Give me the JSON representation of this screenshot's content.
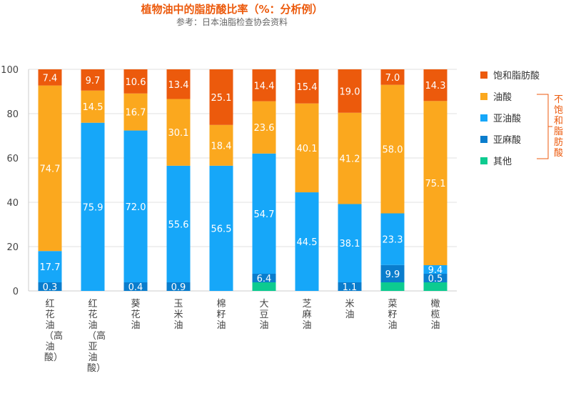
{
  "chart_data": {
    "type": "bar",
    "stacked": true,
    "title": "植物油中的脂肪酸比率（%：分析例）",
    "subtitle": "参考：日本油脂检查协会资料",
    "ylim": [
      0,
      100
    ],
    "yticks": [
      "0",
      "20",
      "40",
      "60",
      "80",
      "100"
    ],
    "grid": true,
    "legend_placement": "right",
    "categories": [
      "红花油（高油酸）",
      "红花油（高亚油酸）",
      "葵花油",
      "玉米油",
      "棉籽油",
      "大豆油",
      "芝麻油",
      "米油",
      "菜籽油",
      "橄榄油"
    ],
    "series": [
      {
        "name": "饱和脂肪酸",
        "color": "#ec5a0c",
        "values": [
          7.4,
          9.7,
          10.6,
          13.4,
          25.1,
          14.4,
          15.4,
          19.0,
          7.0,
          14.3
        ],
        "labels": [
          "7.4",
          "9.7",
          "10.6",
          "13.4",
          "25.1",
          "14.4",
          "15.4",
          "19.0",
          "7.0",
          "14.3"
        ]
      },
      {
        "name": "油酸",
        "color": "#fba81e",
        "values": [
          74.7,
          14.5,
          16.7,
          30.1,
          18.4,
          23.6,
          40.1,
          41.2,
          58.0,
          75.1
        ],
        "labels": [
          "74.7",
          "14.5",
          "16.7",
          "30.1",
          "18.4",
          "23.6",
          "40.1",
          "41.2",
          "58.0",
          "75.1"
        ]
      },
      {
        "name": "亚油酸",
        "color": "#16a7f9",
        "values": [
          17.7,
          75.9,
          72.0,
          55.6,
          56.5,
          54.7,
          44.5,
          38.1,
          23.3,
          9.4
        ],
        "labels": [
          "17.7",
          "75.9",
          "72.0",
          "55.6",
          "56.5",
          "54.7",
          "44.5",
          "38.1",
          "23.3",
          "9.4"
        ]
      },
      {
        "name": "亚麻酸",
        "color": "#0a7dcd",
        "values": [
          0.3,
          0,
          0.4,
          0.9,
          0,
          6.4,
          0,
          1.1,
          9.9,
          0.5
        ],
        "labels": [
          "0.3",
          "",
          "0.4",
          "0.9",
          "",
          "6.4",
          "",
          "1.1",
          "9.9",
          "0.5"
        ]
      },
      {
        "name": "其他",
        "color": "#0dcb90",
        "values": [
          0,
          0,
          0,
          0,
          0,
          0.9,
          0,
          0,
          1.8,
          0.7
        ],
        "labels": [
          "",
          "",
          "",
          "",
          "",
          "",
          "",
          "",
          "",
          ""
        ]
      }
    ],
    "bracket_label": "不饱和脂肪酸"
  }
}
